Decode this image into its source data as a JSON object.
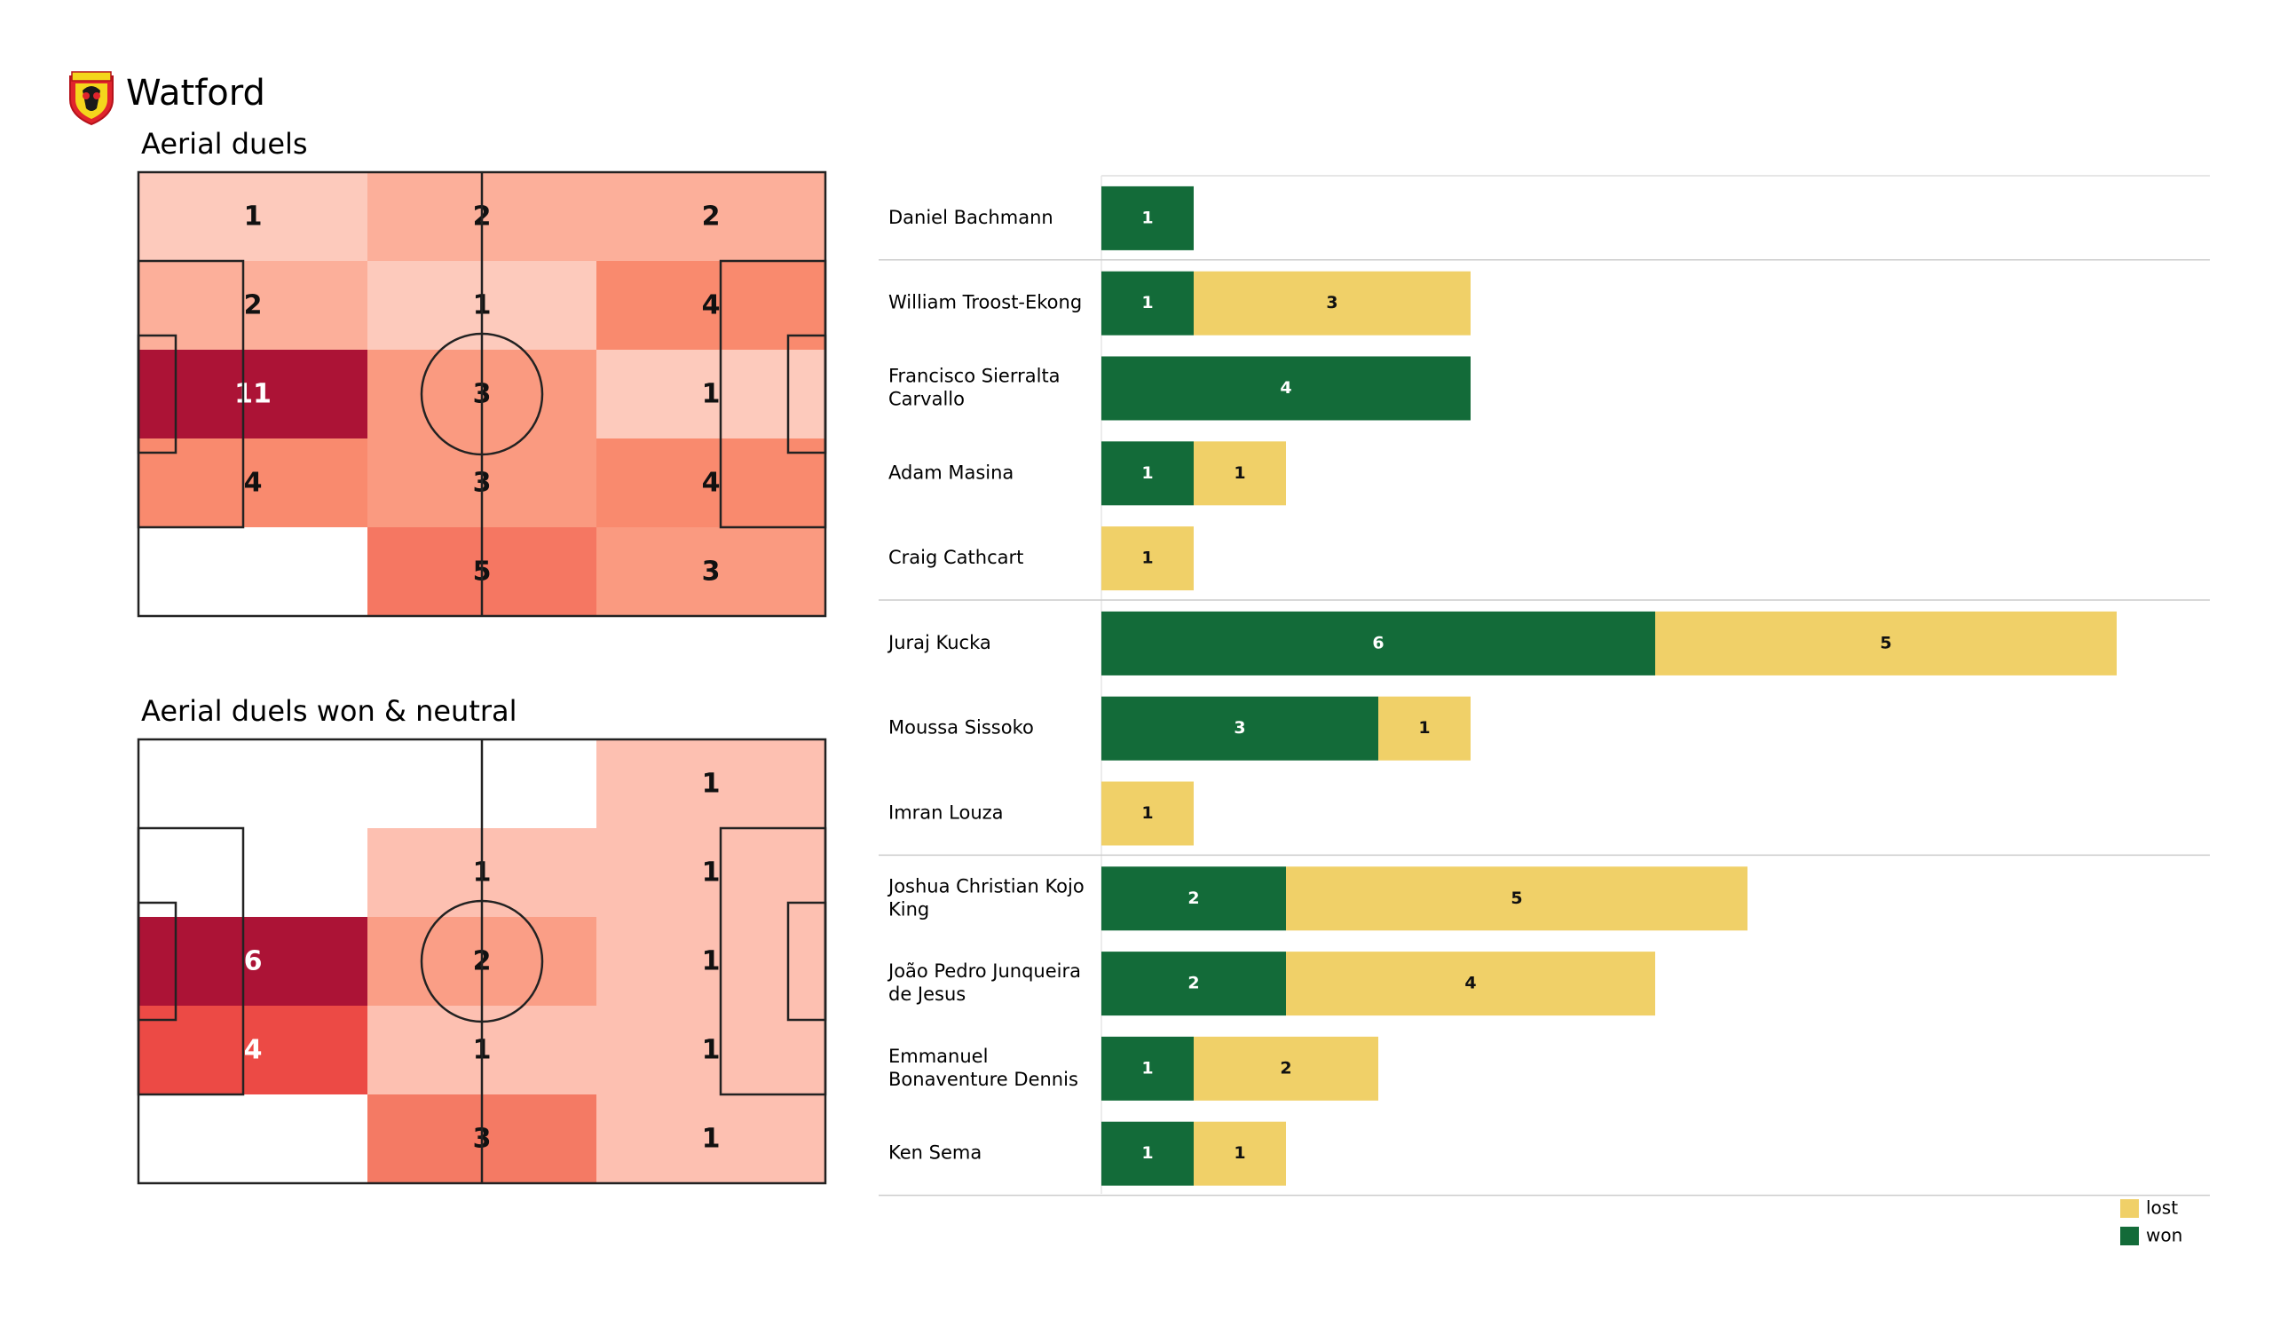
{
  "header": {
    "team": "Watford",
    "badge_icon": "watford-hornet-badge"
  },
  "colors": {
    "won": "#136b39",
    "lost": "#f0d068",
    "heat_low": "#ffffff",
    "heat_mid": "#fcbba1",
    "heat_high": "#ee4a3b",
    "heat_max": "#ac1336"
  },
  "chart_data": [
    {
      "type": "heatmap",
      "title": "Aerial duels",
      "values": [
        [
          1,
          2,
          2
        ],
        [
          2,
          1,
          4
        ],
        [
          11,
          3,
          1
        ],
        [
          4,
          3,
          4
        ],
        [
          0,
          5,
          3
        ]
      ],
      "fills": [
        [
          "#fdcabc",
          "#fcaf9a",
          "#fcaf9a"
        ],
        [
          "#fcaf9a",
          "#fdcabc",
          "#f98a6e"
        ],
        [
          "#ac1336",
          "#fa9a80",
          "#fdcabc"
        ],
        [
          "#f98a6e",
          "#fa9a80",
          "#f98a6e"
        ],
        [
          "#ffffff",
          "#f57762",
          "#fa9a80"
        ]
      ],
      "light_text": [
        [
          false,
          false,
          false
        ],
        [
          false,
          false,
          false
        ],
        [
          true,
          false,
          false
        ],
        [
          false,
          false,
          false
        ],
        [
          false,
          false,
          false
        ]
      ]
    },
    {
      "type": "heatmap",
      "title": "Aerial duels won & neutral",
      "values": [
        [
          0,
          0,
          1
        ],
        [
          0,
          1,
          1
        ],
        [
          6,
          2,
          1
        ],
        [
          4,
          1,
          1
        ],
        [
          0,
          3,
          1
        ]
      ],
      "fills": [
        [
          "#ffffff",
          "#ffffff",
          "#fdc0b1"
        ],
        [
          "#ffffff",
          "#fdc0b1",
          "#fdc0b1"
        ],
        [
          "#ac1336",
          "#fa9e86",
          "#fdc0b1"
        ],
        [
          "#ec4a45",
          "#fdc0b1",
          "#fdc0b1"
        ],
        [
          "#ffffff",
          "#f47a64",
          "#fdc0b1"
        ]
      ],
      "light_text": [
        [
          false,
          false,
          false
        ],
        [
          false,
          false,
          false
        ],
        [
          true,
          false,
          false
        ],
        [
          true,
          false,
          false
        ],
        [
          false,
          false,
          false
        ]
      ]
    },
    {
      "type": "bar",
      "orientation": "horizontal",
      "stacked": true,
      "players": [
        {
          "name": [
            "Daniel Bachmann"
          ],
          "won": 1,
          "lost": 0,
          "group": "GK"
        },
        {
          "name": [
            "William Troost-Ekong"
          ],
          "won": 1,
          "lost": 3,
          "group": "DEF"
        },
        {
          "name": [
            "Francisco Sierralta",
            "Carvallo"
          ],
          "won": 4,
          "lost": 0,
          "group": "DEF"
        },
        {
          "name": [
            "Adam Masina"
          ],
          "won": 1,
          "lost": 1,
          "group": "DEF"
        },
        {
          "name": [
            "Craig Cathcart"
          ],
          "won": 0,
          "lost": 1,
          "group": "DEF"
        },
        {
          "name": [
            "Juraj Kucka"
          ],
          "won": 6,
          "lost": 5,
          "group": "MID"
        },
        {
          "name": [
            "Moussa Sissoko"
          ],
          "won": 3,
          "lost": 1,
          "group": "MID"
        },
        {
          "name": [
            "Imran Louza"
          ],
          "won": 0,
          "lost": 1,
          "group": "MID"
        },
        {
          "name": [
            "Joshua Christian Kojo",
            "King"
          ],
          "won": 2,
          "lost": 5,
          "group": "FWD"
        },
        {
          "name": [
            "João Pedro Junqueira",
            "de Jesus"
          ],
          "won": 2,
          "lost": 4,
          "group": "FWD"
        },
        {
          "name": [
            "Emmanuel",
            "Bonaventure Dennis"
          ],
          "won": 1,
          "lost": 2,
          "group": "FWD"
        },
        {
          "name": [
            "Ken Sema"
          ],
          "won": 1,
          "lost": 1,
          "group": "FWD"
        }
      ],
      "legend": [
        {
          "key": "lost",
          "label": "lost"
        },
        {
          "key": "won",
          "label": "won"
        }
      ],
      "legend_position": "bottom-right"
    }
  ]
}
